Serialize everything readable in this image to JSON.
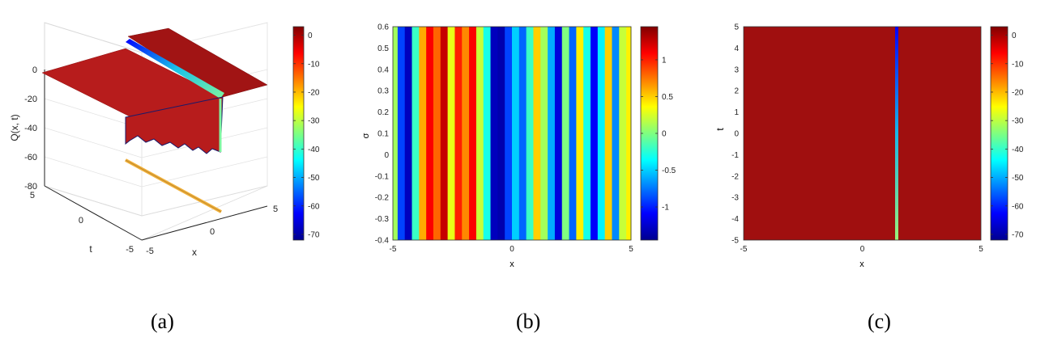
{
  "panel_labels": [
    "(a)",
    "(b)",
    "(c)"
  ],
  "colormap": {
    "name": "jet",
    "stops": [
      "#00008f",
      "#0000ff",
      "#00ffff",
      "#ffff00",
      "#ff0000",
      "#800000"
    ]
  },
  "chart_data": [
    {
      "panel": "(a)",
      "type": "surface3d",
      "zlabel": "Q(x, t)",
      "xlabel": "x",
      "ylabel": "t",
      "xlim": [
        -5,
        5
      ],
      "ylim": [
        -5,
        5
      ],
      "zlim": [
        -80,
        0
      ],
      "x_ticks": [
        "-5",
        "0",
        "5"
      ],
      "y_ticks": [
        "5",
        "0",
        "-5"
      ],
      "z_ticks": [
        "0",
        "-20",
        "-40",
        "-60",
        "-80"
      ],
      "plateau_value": 0,
      "trough_x": 1.5,
      "trough_min": -55,
      "colorbar": {
        "range": [
          -72,
          3
        ],
        "ticks": [
          "0",
          "-10",
          "-20",
          "-30",
          "-40",
          "-50",
          "-60",
          "-70"
        ]
      }
    },
    {
      "panel": "(b)",
      "type": "heatmap",
      "xlabel": "x",
      "ylabel": "σ",
      "xlim": [
        -5,
        5
      ],
      "ylim": [
        -0.4,
        0.6
      ],
      "x_ticks": [
        "-5",
        "0",
        "5"
      ],
      "y_ticks": [
        "0.6",
        "0.5",
        "0.4",
        "0.3",
        "0.2",
        "0.1",
        "0",
        "-0.1",
        "-0.2",
        "-0.3",
        "-0.4"
      ],
      "value_range": [
        -1.45,
        1.45
      ],
      "stripe_x": [
        -5,
        -4.8,
        -4.5,
        -4.2,
        -3.9,
        -3.6,
        -3.3,
        -3.0,
        -2.7,
        -2.4,
        -2.1,
        -1.8,
        -1.5,
        -1.2,
        -0.9,
        -0.6,
        -0.3,
        0,
        0.3,
        0.6,
        0.9,
        1.2,
        1.5,
        1.8,
        2.1,
        2.4,
        2.7,
        3.0,
        3.3,
        3.6,
        3.9,
        4.2,
        4.5,
        4.8,
        5
      ],
      "stripe_values": [
        0.1,
        -0.9,
        -1.3,
        -0.2,
        0.6,
        1.1,
        0.8,
        1.25,
        0.3,
        1.0,
        0.7,
        1.1,
        0.2,
        -0.3,
        -1.3,
        -1.35,
        -0.9,
        -0.5,
        -0.8,
        -0.2,
        0.5,
        0.1,
        -0.6,
        -1.2,
        0.0,
        -0.8,
        0.4,
        -0.3,
        -1.1,
        -0.4,
        0.5,
        -0.7,
        0.2,
        0.4
      ],
      "colorbar": {
        "range": [
          -1.45,
          1.45
        ],
        "ticks": [
          "1",
          "0.5",
          "0",
          "-0.5",
          "-1"
        ]
      }
    },
    {
      "panel": "(c)",
      "type": "heatmap",
      "xlabel": "x",
      "ylabel": "t",
      "xlim": [
        -5,
        5
      ],
      "ylim": [
        -5,
        5
      ],
      "x_ticks": [
        "-5",
        "0",
        "5"
      ],
      "y_ticks": [
        "5",
        "4",
        "3",
        "2",
        "1",
        "0",
        "-1",
        "-2",
        "-3",
        "-4",
        "-5"
      ],
      "background_value": 0,
      "line_x": 1.45,
      "line_min": -70,
      "colorbar": {
        "range": [
          -72,
          3
        ],
        "ticks": [
          "0",
          "-10",
          "-20",
          "-30",
          "-40",
          "-50",
          "-60",
          "-70"
        ]
      }
    }
  ]
}
